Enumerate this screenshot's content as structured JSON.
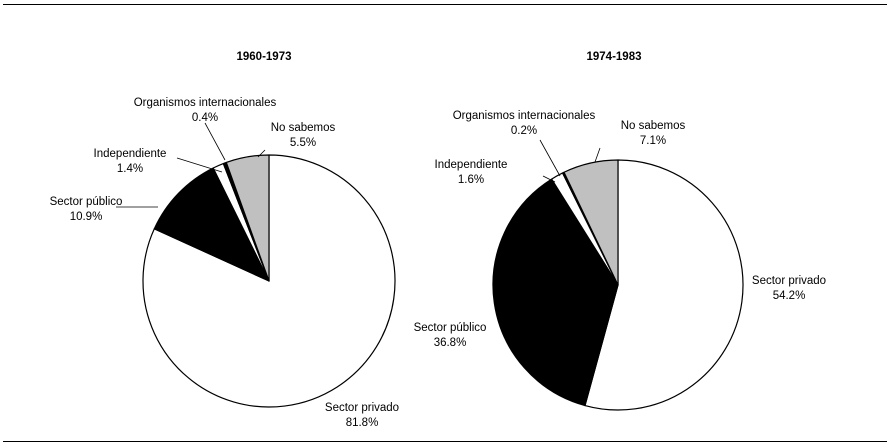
{
  "chart_data": [
    {
      "type": "pie",
      "title": "1960-1973",
      "start_angle_deg": 90,
      "direction": "clockwise",
      "slices": [
        {
          "label": "Sector privado",
          "value": 81.8,
          "display": "81.8%",
          "color": "#ffffff"
        },
        {
          "label": "Sector público",
          "value": 10.9,
          "display": "10.9%",
          "color": "#000000"
        },
        {
          "label": "Independiente",
          "value": 1.4,
          "display": "1.4%",
          "color": "#ffffff"
        },
        {
          "label": "Organismos internacionales",
          "value": 0.4,
          "display": "0.4%",
          "color": "#000000"
        },
        {
          "label": "No sabemos",
          "value": 5.5,
          "display": "5.5%",
          "color": "#c0c0c0"
        }
      ]
    },
    {
      "type": "pie",
      "title": "1974-1983",
      "start_angle_deg": 90,
      "direction": "clockwise",
      "slices": [
        {
          "label": "Sector privado",
          "value": 54.2,
          "display": "54.2%",
          "color": "#ffffff"
        },
        {
          "label": "Sector público",
          "value": 36.8,
          "display": "36.8%",
          "color": "#000000"
        },
        {
          "label": "Independiente",
          "value": 1.6,
          "display": "1.6%",
          "color": "#ffffff"
        },
        {
          "label": "Organismos internacionales",
          "value": 0.2,
          "display": "0.2%",
          "color": "#000000"
        },
        {
          "label": "No sabemos",
          "value": 7.1,
          "display": "7.1%",
          "color": "#c0c0c0"
        }
      ]
    }
  ]
}
